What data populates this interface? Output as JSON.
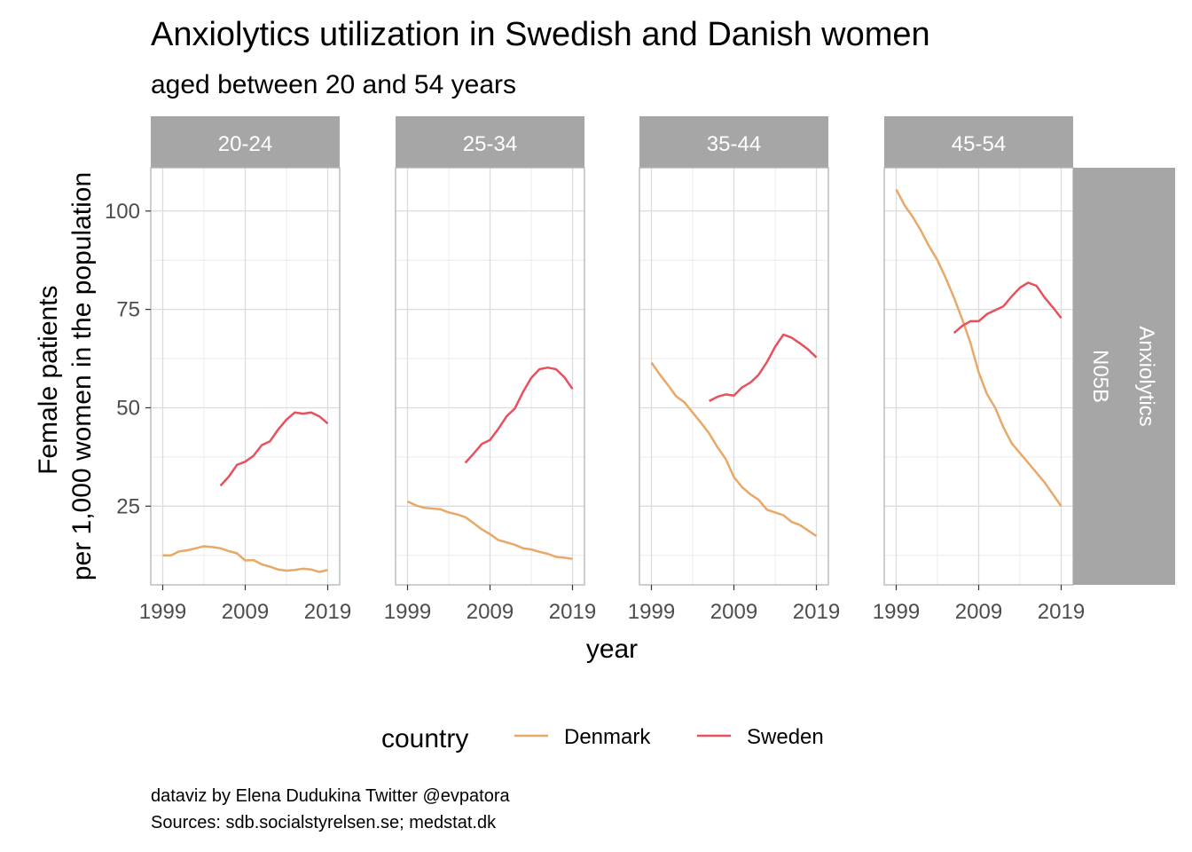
{
  "title": "Anxiolytics utilization in Swedish and Danish women",
  "subtitle": "aged between 20 and 54 years",
  "caption": {
    "line1": "dataviz by Elena Dudukina Twitter @evpatora",
    "line2": "Sources: sdb.socialstyrelsen.se; medstat.dk"
  },
  "row_strip": {
    "labels": [
      "Anxiolytics",
      "N05B"
    ]
  },
  "legend": {
    "title": "country",
    "placement": "bottom"
  },
  "colors": {
    "Denmark": "#E8A867",
    "Sweden": "#E8505B",
    "strip_bg": "#A6A6A6",
    "grid": "#DCDCDC",
    "panel_border": "#B3B3B3"
  },
  "chart_data": {
    "type": "line",
    "xlabel": "year",
    "ylabel": "Female patients\nper 1,000 women in the population",
    "xlim": [
      1999,
      2019
    ],
    "ylim": [
      5,
      111
    ],
    "x_ticks": [
      1999,
      2009,
      2019
    ],
    "y_ticks": [
      25,
      50,
      75,
      100
    ],
    "grid": true,
    "facets": [
      {
        "label": "20-24",
        "series": [
          {
            "name": "Denmark",
            "x": [
              1999,
              2000,
              2001,
              2002,
              2003,
              2004,
              2005,
              2006,
              2007,
              2008,
              2009,
              2010,
              2011,
              2012,
              2013,
              2014,
              2015,
              2016,
              2017,
              2018,
              2019
            ],
            "values": [
              12.5,
              12.5,
              13.5,
              13.8,
              14.3,
              14.8,
              14.6,
              14.3,
              13.6,
              13.0,
              11.2,
              11.3,
              10.2,
              9.6,
              8.9,
              8.6,
              8.8,
              9.1,
              8.9,
              8.3,
              8.8
            ]
          },
          {
            "name": "Sweden",
            "x": [
              2006,
              2007,
              2008,
              2009,
              2010,
              2011,
              2012,
              2013,
              2014,
              2015,
              2016,
              2017,
              2018,
              2019
            ],
            "values": [
              30.2,
              32.5,
              35.5,
              36.3,
              37.8,
              40.5,
              41.5,
              44.5,
              47.0,
              48.8,
              48.5,
              48.8,
              47.8,
              46.0
            ]
          }
        ]
      },
      {
        "label": "25-34",
        "series": [
          {
            "name": "Denmark",
            "x": [
              1999,
              2000,
              2001,
              2002,
              2003,
              2004,
              2005,
              2006,
              2007,
              2008,
              2009,
              2010,
              2011,
              2012,
              2013,
              2014,
              2015,
              2016,
              2017,
              2018,
              2019
            ],
            "values": [
              26.2,
              25.2,
              24.6,
              24.4,
              24.2,
              23.4,
              22.9,
              22.2,
              20.7,
              19.1,
              17.9,
              16.4,
              15.8,
              15.2,
              14.3,
              14.0,
              13.4,
              12.9,
              12.1,
              11.9,
              11.6
            ]
          },
          {
            "name": "Sweden",
            "x": [
              2006,
              2007,
              2008,
              2009,
              2010,
              2011,
              2012,
              2013,
              2014,
              2015,
              2016,
              2017,
              2018,
              2019
            ],
            "values": [
              36.0,
              38.3,
              40.8,
              41.8,
              44.6,
              47.8,
              49.8,
              54.0,
              57.6,
              59.8,
              60.2,
              59.8,
              57.8,
              54.8
            ]
          }
        ]
      },
      {
        "label": "35-44",
        "series": [
          {
            "name": "Denmark",
            "x": [
              1999,
              2000,
              2001,
              2002,
              2003,
              2004,
              2005,
              2006,
              2007,
              2008,
              2009,
              2010,
              2011,
              2012,
              2013,
              2014,
              2015,
              2016,
              2017,
              2018,
              2019
            ],
            "values": [
              61.5,
              58.5,
              55.8,
              52.9,
              51.4,
              48.8,
              46.2,
              43.5,
              40.0,
              37.0,
              32.4,
              29.8,
              28.0,
              26.6,
              24.1,
              23.4,
              22.7,
              21.0,
              20.2,
              18.8,
              17.4
            ]
          },
          {
            "name": "Sweden",
            "x": [
              2006,
              2007,
              2008,
              2009,
              2010,
              2011,
              2012,
              2013,
              2014,
              2015,
              2016,
              2017,
              2018,
              2019
            ],
            "values": [
              51.7,
              52.8,
              53.4,
              53.1,
              55.2,
              56.4,
              58.4,
              61.6,
              65.5,
              68.6,
              67.8,
              66.4,
              64.8,
              62.8
            ]
          }
        ]
      },
      {
        "label": "45-54",
        "series": [
          {
            "name": "Denmark",
            "x": [
              1999,
              2000,
              2001,
              2002,
              2003,
              2004,
              2005,
              2006,
              2007,
              2008,
              2009,
              2010,
              2011,
              2012,
              2013,
              2014,
              2015,
              2016,
              2017,
              2018,
              2019
            ],
            "values": [
              105.5,
              101.5,
              98.5,
              95.0,
              91.0,
              87.5,
              83.0,
              78.0,
              72.5,
              66.5,
              59.0,
              53.5,
              50.0,
              45.0,
              41.0,
              38.5,
              36.0,
              33.5,
              31.0,
              28.0,
              25.0
            ]
          },
          {
            "name": "Sweden",
            "x": [
              2006,
              2007,
              2008,
              2009,
              2010,
              2011,
              2012,
              2013,
              2014,
              2015,
              2016,
              2017,
              2018,
              2019
            ],
            "values": [
              69.0,
              70.8,
              72.0,
              72.0,
              73.8,
              74.8,
              75.8,
              78.3,
              80.5,
              81.8,
              81.0,
              78.0,
              75.5,
              72.8
            ]
          }
        ]
      }
    ]
  }
}
